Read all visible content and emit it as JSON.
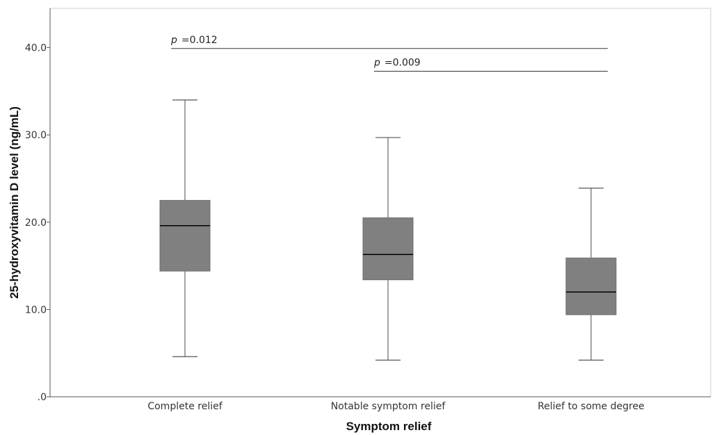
{
  "chart_data": {
    "type": "boxplot",
    "xlabel": "Symptom relief",
    "ylabel": "25-hydroxyvitamin D level (ng/mL)",
    "ylim": [
      0,
      44.5
    ],
    "yticks": [
      0,
      10,
      20,
      30,
      40
    ],
    "ytick_labels": [
      ".0",
      "10.0",
      "20.0",
      "30.0",
      "40.0"
    ],
    "grid": false,
    "box_color": "#808080",
    "categories": [
      "Complete relief",
      "Notable symptom relief",
      "Relief to some degree"
    ],
    "boxes": [
      {
        "category": "Complete relief",
        "min": 4.6,
        "q1": 14.4,
        "median": 19.6,
        "q3": 22.5,
        "max": 34.0
      },
      {
        "category": "Notable symptom relief",
        "min": 4.2,
        "q1": 13.4,
        "median": 16.3,
        "q3": 20.5,
        "max": 29.7
      },
      {
        "category": "Relief to some degree",
        "min": 4.2,
        "q1": 9.4,
        "median": 12.0,
        "q3": 15.9,
        "max": 23.9
      }
    ],
    "annotations": [
      {
        "from": "Complete relief",
        "to": "Relief to some degree",
        "y": 39.9,
        "p_symbol": "p",
        "text": "=0.012"
      },
      {
        "from": "Notable symptom relief",
        "to": "Relief to some degree",
        "y": 37.3,
        "p_symbol": "p",
        "text": "=0.009"
      }
    ]
  }
}
